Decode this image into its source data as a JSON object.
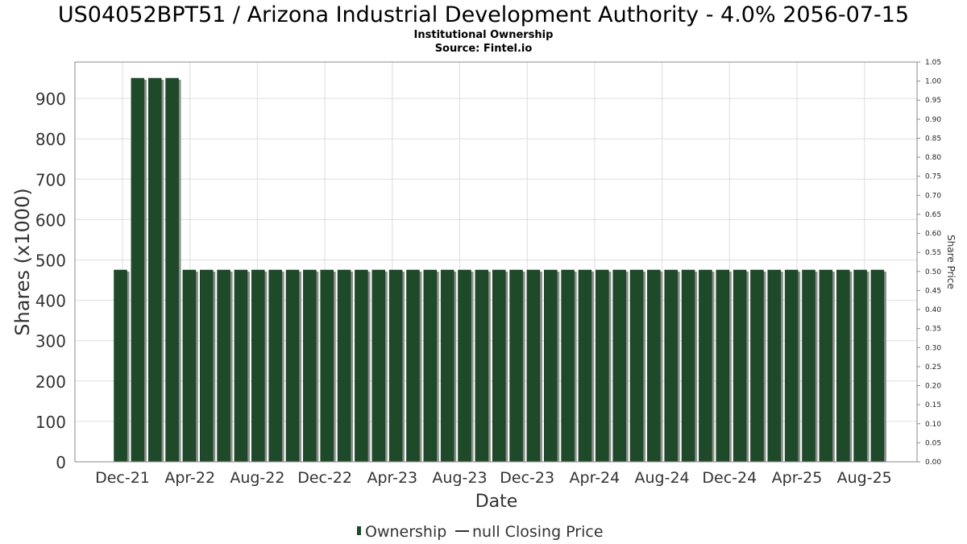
{
  "title": "US04052BPT51 / Arizona Industrial Development Authority - 4.0% 2056-07-15",
  "subtitle": "Institutional Ownership",
  "source": "Source: Fintel.io",
  "legend": {
    "ownership_label": "Ownership",
    "price_label": "null Closing Price"
  },
  "colors": {
    "bar": "#1f4a2a",
    "bar_shadow": "#8a8f8a",
    "grid": "#dddddd",
    "axis": "#888888",
    "text": "#222222"
  },
  "chart_data": {
    "type": "bar",
    "title": "US04052BPT51 / Arizona Industrial Development Authority - 4.0% 2056-07-15",
    "subtitle": "Institutional Ownership",
    "xlabel": "Date",
    "ylabel": "Shares (x1000)",
    "y2label": "Share Price",
    "ylim": [
      0,
      990
    ],
    "y2lim": [
      0,
      1.05
    ],
    "yticks": [
      0,
      100,
      200,
      300,
      400,
      500,
      600,
      700,
      800,
      900
    ],
    "y2ticks": [
      "0.00",
      "0.05",
      "0.10",
      "0.15",
      "0.20",
      "0.25",
      "0.30",
      "0.35",
      "0.40",
      "0.45",
      "0.50",
      "0.55",
      "0.60",
      "0.65",
      "0.70",
      "0.75",
      "0.80",
      "0.85",
      "0.90",
      "0.95",
      "1.00",
      "1.05"
    ],
    "xtick_labels": [
      "Dec-21",
      "Apr-22",
      "Aug-22",
      "Dec-22",
      "Apr-23",
      "Aug-23",
      "Dec-23",
      "Apr-24",
      "Aug-24",
      "Dec-24",
      "Apr-25",
      "Aug-25"
    ],
    "grid": true,
    "legend_position": "bottom",
    "series": [
      {
        "name": "Ownership",
        "values": [
          475,
          950,
          950,
          950,
          475,
          475,
          475,
          475,
          475,
          475,
          475,
          475,
          475,
          475,
          475,
          475,
          475,
          475,
          475,
          475,
          475,
          475,
          475,
          475,
          475,
          475,
          475,
          475,
          475,
          475,
          475,
          475,
          475,
          475,
          475,
          475,
          475,
          475,
          475,
          475,
          475,
          475,
          475,
          475,
          475
        ]
      }
    ]
  }
}
